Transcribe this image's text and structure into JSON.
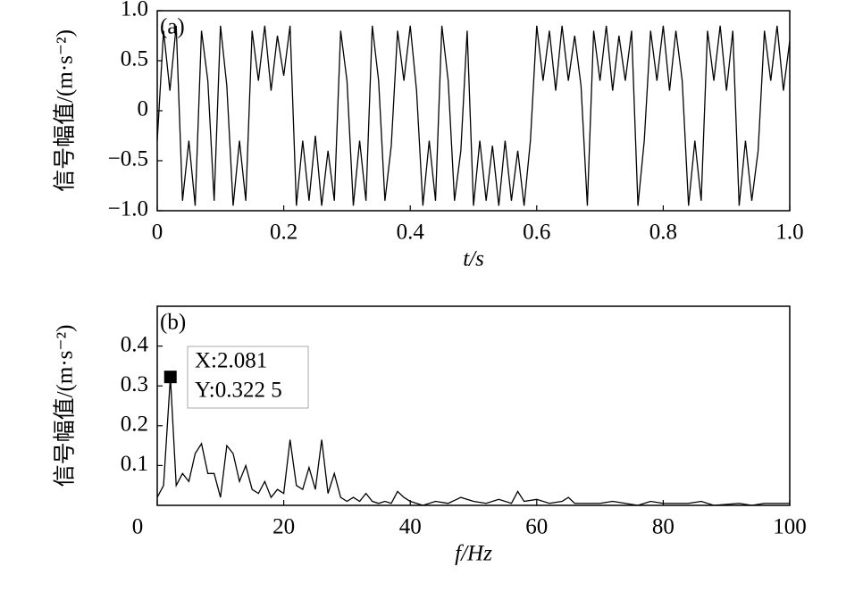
{
  "chart_data": [
    {
      "type": "line",
      "panel": "(a)",
      "xlabel": "t/s",
      "ylabel": "信号幅值/(m·s⁻²)",
      "color": "#000000",
      "x": [
        0,
        0.01,
        0.02,
        0.03,
        0.04,
        0.05,
        0.06,
        0.07,
        0.08,
        0.09,
        0.1,
        0.11,
        0.12,
        0.13,
        0.14,
        0.15,
        0.16,
        0.17,
        0.18,
        0.19,
        0.2,
        0.21,
        0.22,
        0.23,
        0.24,
        0.25,
        0.26,
        0.27,
        0.28,
        0.29,
        0.3,
        0.31,
        0.32,
        0.33,
        0.34,
        0.35,
        0.36,
        0.37,
        0.38,
        0.39,
        0.4,
        0.41,
        0.42,
        0.43,
        0.44,
        0.45,
        0.46,
        0.47,
        0.48,
        0.49,
        0.5,
        0.51,
        0.52,
        0.53,
        0.54,
        0.55,
        0.56,
        0.57,
        0.58,
        0.59,
        0.6,
        0.61,
        0.62,
        0.63,
        0.64,
        0.65,
        0.66,
        0.67,
        0.68,
        0.69,
        0.7,
        0.71,
        0.72,
        0.73,
        0.74,
        0.75,
        0.76,
        0.77,
        0.78,
        0.79,
        0.8,
        0.81,
        0.82,
        0.83,
        0.84,
        0.85,
        0.86,
        0.87,
        0.88,
        0.89,
        0.9,
        0.91,
        0.92,
        0.93,
        0.94,
        0.95,
        0.96,
        0.97,
        0.98,
        0.99,
        1
      ],
      "values": [
        -0.3,
        0.8,
        0.2,
        0.85,
        -0.9,
        -0.3,
        -0.95,
        0.8,
        0.3,
        -0.9,
        0.85,
        0.25,
        -0.95,
        -0.3,
        -0.9,
        0.8,
        0.3,
        0.85,
        0.2,
        0.75,
        0.35,
        0.85,
        -0.95,
        -0.3,
        -0.9,
        -0.25,
        -0.95,
        -0.4,
        -0.9,
        0.8,
        0.3,
        -0.95,
        -0.3,
        -0.9,
        0.85,
        0.3,
        -0.9,
        -0.35,
        0.8,
        0.3,
        0.85,
        0.2,
        -0.95,
        -0.3,
        -0.9,
        0.85,
        0.3,
        -0.9,
        -0.4,
        0.8,
        -0.95,
        -0.3,
        -0.9,
        -0.35,
        -0.95,
        -0.3,
        -0.9,
        -0.4,
        -0.95,
        -0.3,
        0.85,
        0.3,
        0.8,
        0.2,
        0.85,
        0.3,
        0.75,
        0.25,
        -0.95,
        0.8,
        0.3,
        0.85,
        0.2,
        0.75,
        0.3,
        0.8,
        -0.95,
        -0.3,
        0.8,
        0.3,
        0.85,
        0.2,
        0.8,
        0.3,
        -0.95,
        -0.3,
        -0.9,
        0.8,
        0.3,
        0.85,
        0.2,
        0.8,
        -0.95,
        -0.3,
        -0.9,
        -0.4,
        0.8,
        0.3,
        0.85,
        0.2,
        0.7
      ],
      "xlim": [
        0,
        1
      ],
      "ylim": [
        -1,
        1
      ],
      "xticks": [
        0,
        0.2,
        0.4,
        0.6,
        0.8,
        {
          "value": 1,
          "label": "1.0"
        }
      ],
      "yticks": [
        {
          "value": 1,
          "label": "1.0"
        },
        0.5,
        0,
        {
          "value": -0.5,
          "label": "−0.5"
        },
        {
          "value": -1,
          "label": "−1.0"
        }
      ]
    },
    {
      "type": "line",
      "panel": "(b)",
      "xlabel": "f/Hz",
      "ylabel": "信号幅值/(m·s⁻²)",
      "color": "#000000",
      "x": [
        0,
        1,
        2.081,
        3,
        4,
        5,
        6,
        7,
        8,
        9,
        10,
        11,
        12,
        13,
        14,
        15,
        16,
        17,
        18,
        19,
        20,
        21,
        22,
        23,
        24,
        25,
        26,
        27,
        28,
        29,
        30,
        31,
        32,
        33,
        34,
        35,
        36,
        37,
        38,
        39,
        40,
        42,
        44,
        46,
        48,
        50,
        52,
        54,
        56,
        57,
        58,
        60,
        62,
        64,
        65,
        66,
        70,
        72,
        74,
        76,
        78,
        80,
        84,
        86,
        88,
        92,
        94,
        96,
        100
      ],
      "values": [
        0.02,
        0.05,
        0.3225,
        0.05,
        0.08,
        0.06,
        0.13,
        0.155,
        0.08,
        0.08,
        0.02,
        0.15,
        0.13,
        0.06,
        0.1,
        0.04,
        0.03,
        0.06,
        0.02,
        0.04,
        0.03,
        0.165,
        0.05,
        0.04,
        0.095,
        0.04,
        0.165,
        0.03,
        0.08,
        0.02,
        0.01,
        0.02,
        0.01,
        0.03,
        0.01,
        0.005,
        0.01,
        0.005,
        0.035,
        0.02,
        0.01,
        0,
        0.01,
        0.005,
        0.02,
        0.01,
        0.005,
        0.015,
        0.005,
        0.035,
        0.01,
        0.015,
        0.005,
        0.01,
        0.02,
        0.005,
        0.005,
        0.01,
        0.005,
        0,
        0.01,
        0.005,
        0.005,
        0.01,
        0,
        0.005,
        0,
        0.005,
        0.005
      ],
      "xlim": [
        0,
        100
      ],
      "ylim": [
        0,
        0.5
      ],
      "xticks": [
        0,
        20,
        40,
        60,
        80,
        100
      ],
      "yticks": [
        0.1,
        0.2,
        0.3,
        0.4
      ],
      "marker": {
        "x": 2.081,
        "y": 0.3225
      },
      "annotation": [
        "X:2.081",
        "Y:0.322 5"
      ]
    }
  ]
}
